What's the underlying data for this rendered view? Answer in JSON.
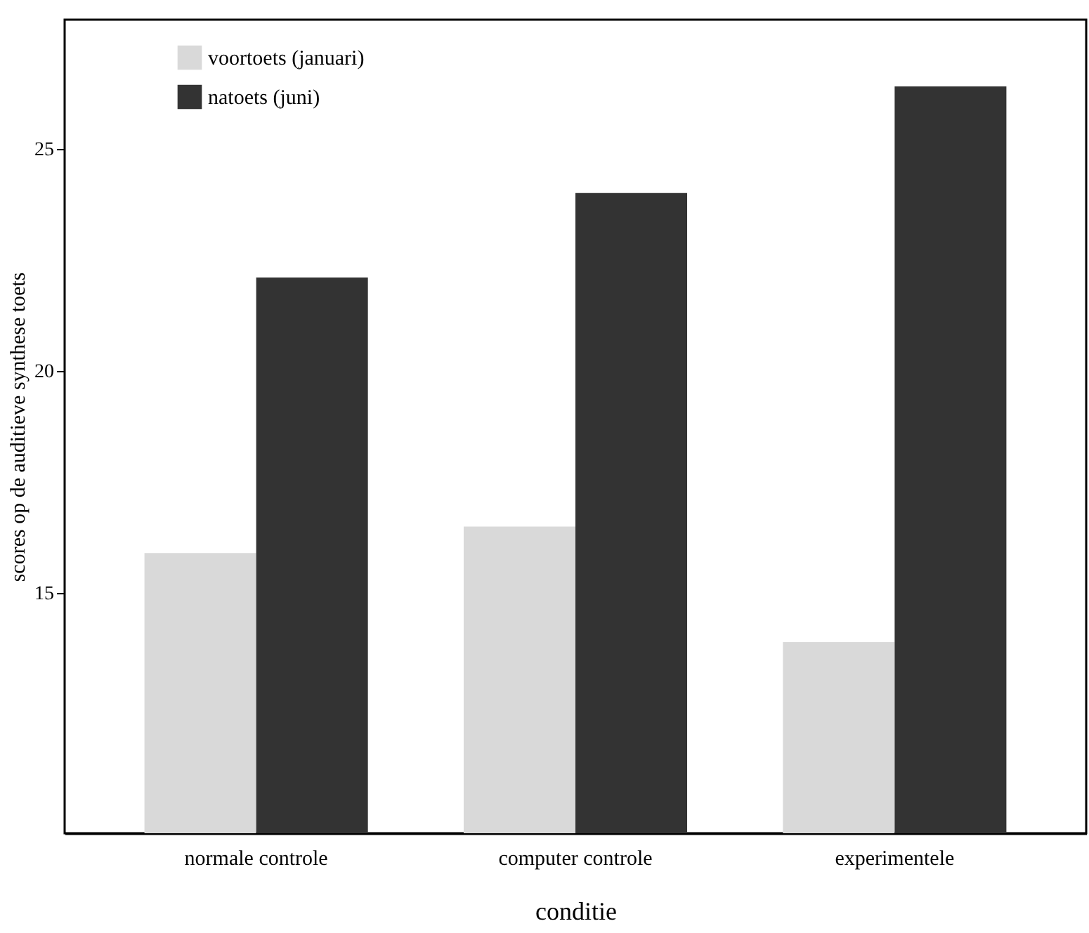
{
  "chart_data": {
    "type": "bar",
    "ylabel": "scores op de auditieve synthese toets",
    "xlabel": "conditie",
    "categories": [
      "normale controle",
      "computer controle",
      "experimentele"
    ],
    "series": [
      {
        "name": "voortoets (januari)",
        "color": "#d9d9d9",
        "values": [
          15.9,
          16.5,
          13.9
        ]
      },
      {
        "name": "natoets (juni)",
        "color": "#333333",
        "values": [
          22.1,
          24.0,
          26.4
        ]
      }
    ],
    "ylim": [
      9.6,
      27.9
    ],
    "yticks": [
      15,
      20,
      25
    ],
    "grid": false,
    "legend": "top left"
  }
}
